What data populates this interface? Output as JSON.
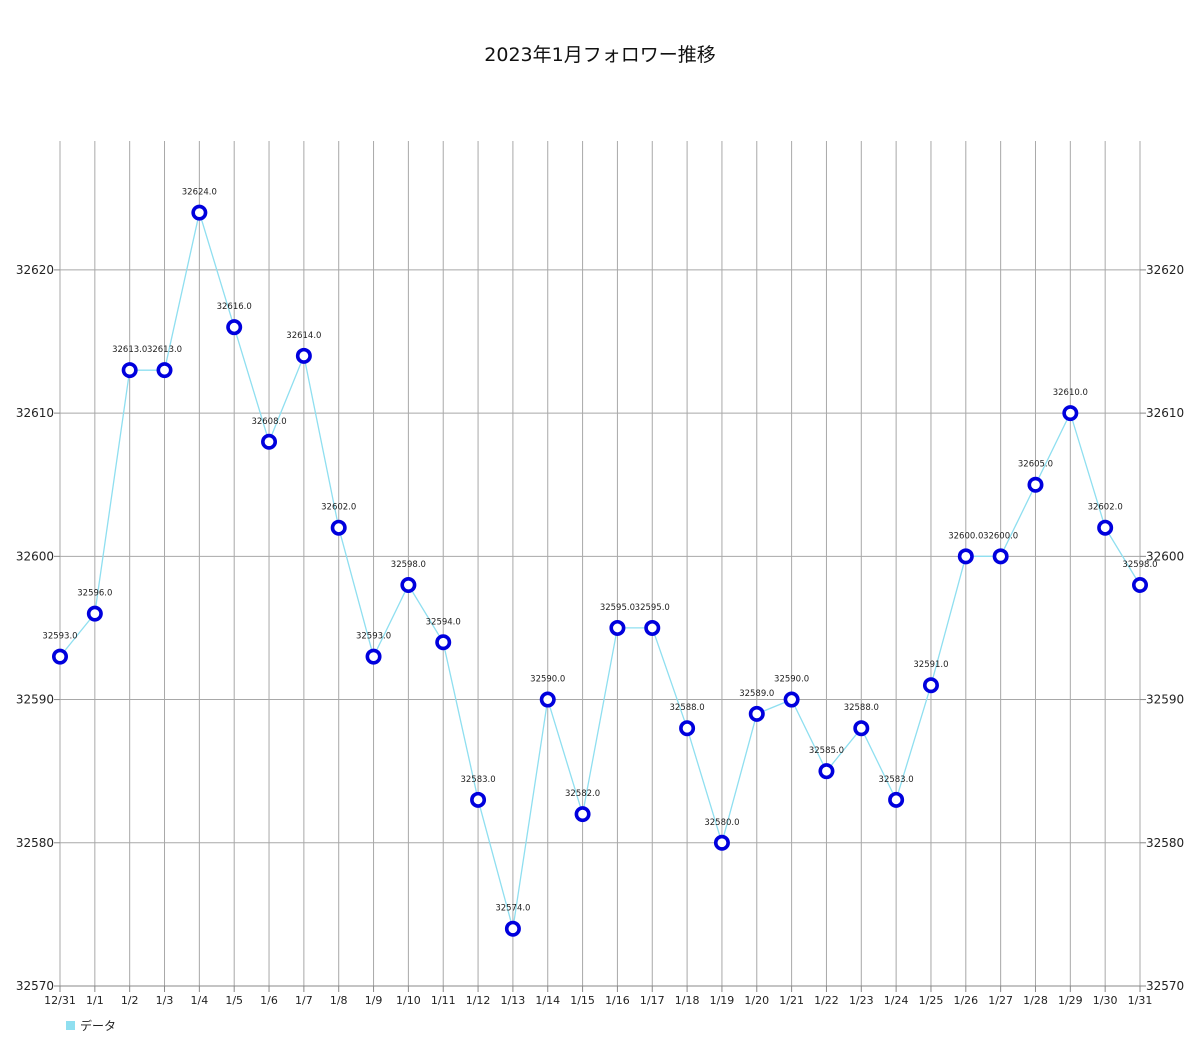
{
  "chart_data": {
    "type": "line",
    "title": "2023年1月フォロワー推移",
    "xlabel": "",
    "ylabel": "",
    "categories": [
      "12/31",
      "1/1",
      "1/2",
      "1/3",
      "1/4",
      "1/5",
      "1/6",
      "1/7",
      "1/8",
      "1/9",
      "1/10",
      "1/11",
      "1/12",
      "1/13",
      "1/14",
      "1/15",
      "1/16",
      "1/17",
      "1/18",
      "1/19",
      "1/20",
      "1/21",
      "1/22",
      "1/23",
      "1/24",
      "1/25",
      "1/26",
      "1/27",
      "1/28",
      "1/29",
      "1/30",
      "1/31"
    ],
    "series": [
      {
        "name": "データ",
        "values": [
          32593,
          32596,
          32613,
          32613,
          32624,
          32616,
          32608,
          32614,
          32602,
          32593,
          32598,
          32594,
          32583,
          32574,
          32590,
          32582,
          32595,
          32595,
          32588,
          32580,
          32589,
          32590,
          32585,
          32588,
          32583,
          32591,
          32600,
          32600,
          32605,
          32610,
          32602,
          32598
        ],
        "line_color": "#8fdff0",
        "marker_color": "#0000dd"
      }
    ],
    "ylim": [
      32570,
      32629
    ],
    "yticks": [
      32570,
      32580,
      32590,
      32600,
      32610,
      32620
    ],
    "data_label_format": "one-decimal",
    "grid": true,
    "legend_position": "bottom-left",
    "axes": "left-and-right"
  }
}
